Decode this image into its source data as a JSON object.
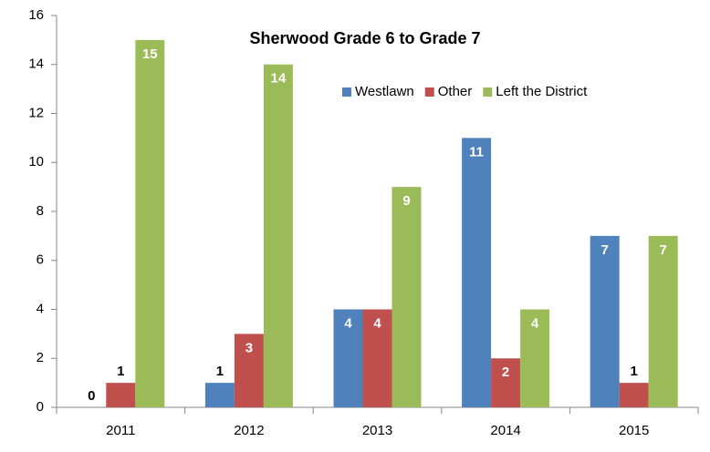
{
  "chart_data": {
    "type": "bar",
    "title": "Sherwood Grade 6 to Grade 7",
    "categories": [
      "2011",
      "2012",
      "2013",
      "2014",
      "2015"
    ],
    "series": [
      {
        "name": "Westlawn",
        "color": "#4f81bd",
        "values": [
          0,
          1,
          4,
          11,
          7
        ]
      },
      {
        "name": "Other",
        "color": "#c0504d",
        "values": [
          1,
          3,
          4,
          2,
          1
        ]
      },
      {
        "name": "Left the District",
        "color": "#9bbb59",
        "values": [
          15,
          14,
          9,
          4,
          7
        ]
      }
    ],
    "ylim": [
      0,
      16
    ],
    "yticks": [
      0,
      2,
      4,
      6,
      8,
      10,
      12,
      14,
      16
    ],
    "grid": false,
    "legend": "top-right"
  }
}
